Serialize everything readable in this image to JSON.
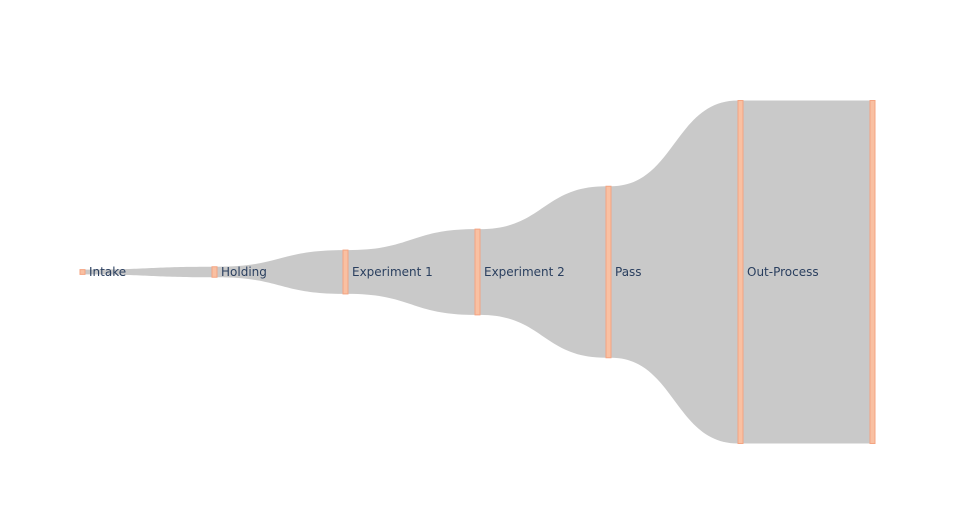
{
  "diagram": {
    "type": "sankey",
    "colors": {
      "link": "#c9c9c9",
      "node_fill": "#f9c0a2",
      "node_stroke": "#f4a482",
      "label": "#2a3f5f"
    },
    "nodes": [
      {
        "id": "intake",
        "label": "Intake"
      },
      {
        "id": "holding",
        "label": "Holding"
      },
      {
        "id": "experiment-1",
        "label": "Experiment 1"
      },
      {
        "id": "experiment-2",
        "label": "Experiment 2"
      },
      {
        "id": "pass",
        "label": "Pass"
      },
      {
        "id": "out-process",
        "label": "Out-Process"
      },
      {
        "id": "sink",
        "label": ""
      }
    ],
    "links": [
      {
        "source": "intake",
        "target": "holding",
        "value": 1
      },
      {
        "source": "holding",
        "target": "experiment-1",
        "value": 2.2
      },
      {
        "source": "experiment-1",
        "target": "experiment-2",
        "value": 9.2
      },
      {
        "source": "experiment-2",
        "target": "pass",
        "value": 18
      },
      {
        "source": "pass",
        "target": "out-process",
        "value": 36
      },
      {
        "source": "out-process",
        "target": "sink",
        "value": 72
      }
    ]
  }
}
